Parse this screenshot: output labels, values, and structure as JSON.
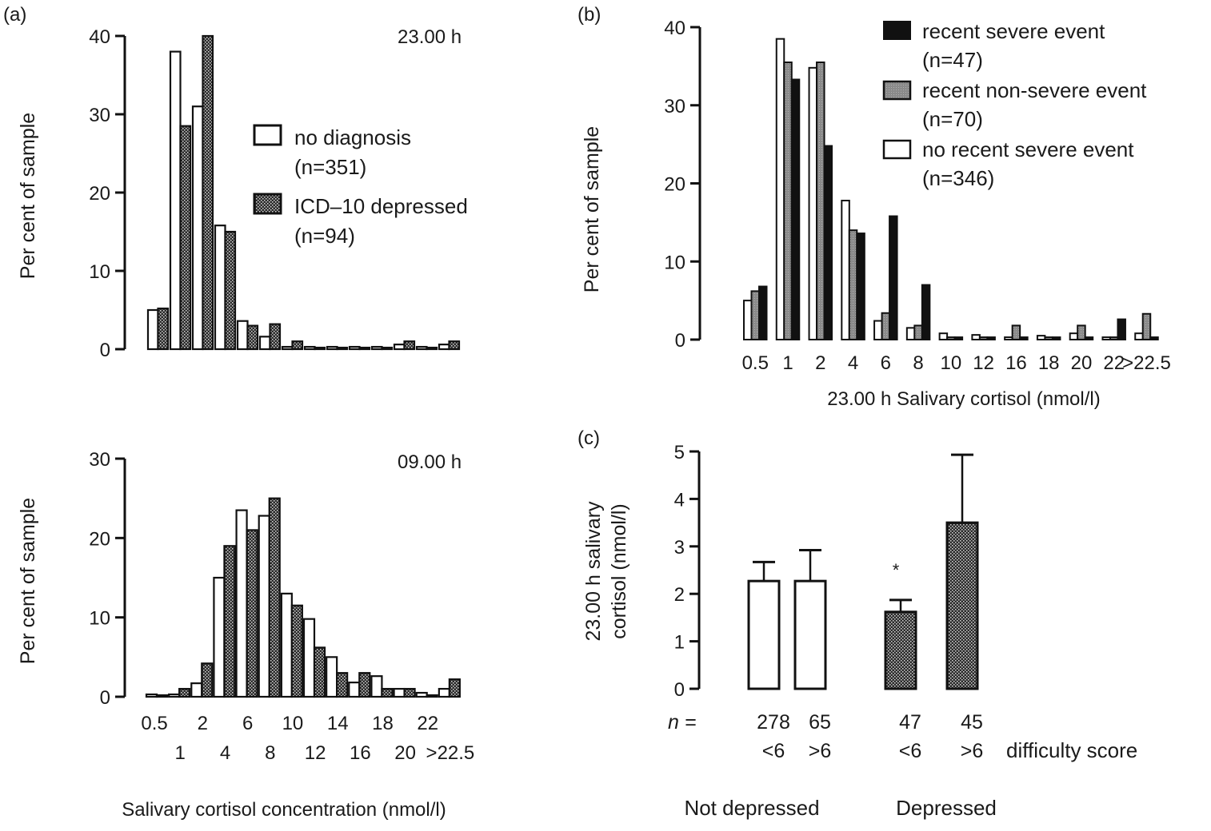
{
  "chart_data": [
    {
      "id": "a_top",
      "panel_label": "(a)",
      "type": "bar",
      "title": "23.00 h",
      "xlabel": "",
      "ylabel": "Per cent of sample",
      "ylim": [
        0,
        40
      ],
      "yticks": [
        0,
        10,
        20,
        30,
        40
      ],
      "categories": [
        "0.5",
        "1",
        "2",
        "4",
        "6",
        "8",
        "10",
        "12",
        "14",
        "16",
        "18",
        "20",
        "22",
        ">22.5"
      ],
      "series": [
        {
          "name": "no diagnosis",
          "n_label": "(n=351)",
          "fill": "white",
          "values": [
            5.0,
            38.0,
            31.0,
            15.8,
            3.6,
            1.6,
            0.3,
            0.3,
            0.3,
            0.3,
            0.3,
            0.6,
            0.3,
            0.6
          ]
        },
        {
          "name": "ICD–10 depressed",
          "n_label": "(n=94)",
          "fill": "stipple",
          "values": [
            5.2,
            28.5,
            40.0,
            15.0,
            3.0,
            3.2,
            1.0,
            0.2,
            0.2,
            0.2,
            0.2,
            1.0,
            0.2,
            1.0
          ]
        }
      ],
      "legend": "right"
    },
    {
      "id": "a_bottom",
      "type": "bar",
      "title": "09.00 h",
      "xlabel": "Salivary cortisol concentration (nmol/l)",
      "ylabel": "Per cent of sample",
      "ylim": [
        0,
        30
      ],
      "yticks": [
        0,
        10,
        20,
        30
      ],
      "categories": [
        "0.5",
        "1",
        "2",
        "4",
        "6",
        "8",
        "10",
        "12",
        "14",
        "16",
        "18",
        "20",
        "22",
        ">22.5"
      ],
      "series": [
        {
          "name": "no diagnosis",
          "fill": "white",
          "values": [
            0.3,
            0.3,
            1.7,
            15.0,
            23.5,
            22.8,
            13.0,
            9.8,
            5.0,
            1.8,
            2.6,
            1.0,
            0.5,
            1.0
          ]
        },
        {
          "name": "ICD–10 depressed",
          "fill": "stipple",
          "values": [
            0.2,
            1.0,
            4.2,
            19.0,
            21.0,
            25.0,
            11.5,
            6.2,
            3.0,
            3.0,
            1.0,
            1.0,
            0.2,
            2.2
          ]
        }
      ]
    },
    {
      "id": "b",
      "panel_label": "(b)",
      "type": "bar",
      "title": "",
      "xlabel": "23.00 h  Salivary cortisol (nmol/l)",
      "ylabel": "Per cent of sample",
      "ylim": [
        0,
        40
      ],
      "yticks": [
        0,
        10,
        20,
        30,
        40
      ],
      "categories": [
        "0.5",
        "1",
        "2",
        "4",
        "6",
        "8",
        "10",
        "12",
        "16",
        "18",
        "20",
        "22",
        ">22.5"
      ],
      "series": [
        {
          "name": "no recent severe event",
          "n_label": "(n=346)",
          "fill": "white",
          "values": [
            5.0,
            38.5,
            34.8,
            17.8,
            2.4,
            1.5,
            0.8,
            0.6,
            0.3,
            0.5,
            0.8,
            0.3,
            0.8
          ]
        },
        {
          "name": "recent non-severe event",
          "n_label": "(n=70)",
          "fill": "grey",
          "values": [
            6.2,
            35.5,
            35.5,
            14.0,
            3.4,
            1.8,
            0.3,
            0.3,
            1.8,
            0.3,
            1.8,
            0.3,
            3.3
          ]
        },
        {
          "name": "recent severe event",
          "n_label": "(n=47)",
          "fill": "black",
          "values": [
            6.8,
            33.3,
            24.8,
            13.6,
            15.8,
            7.0,
            0.3,
            0.3,
            0.3,
            0.3,
            0.3,
            2.6,
            0.3
          ]
        }
      ],
      "legend_order": [
        "recent severe event",
        "recent non-severe event",
        "no recent severe event"
      ],
      "legend": "top-right"
    },
    {
      "id": "c",
      "panel_label": "(c)",
      "type": "bar",
      "ylabel_line1": "23.00 h  salivary",
      "ylabel_line2": "cortisol (nmol/l)",
      "ylim": [
        0,
        5
      ],
      "yticks": [
        0,
        1,
        2,
        3,
        4,
        5
      ],
      "n_prefix": "n =",
      "difficulty_label": "difficulty score",
      "groups": [
        {
          "name": "Not depressed",
          "bars": [
            {
              "n": "278",
              "score": "<6",
              "value": 2.27,
              "error_top": 2.67,
              "fill": "white",
              "annotation": ""
            },
            {
              "n": "65",
              "score": ">6",
              "value": 2.27,
              "error_top": 2.92,
              "fill": "white",
              "annotation": ""
            }
          ]
        },
        {
          "name": "Depressed",
          "bars": [
            {
              "n": "47",
              "score": "<6",
              "value": 1.62,
              "error_top": 1.87,
              "fill": "stipple",
              "annotation": "*"
            },
            {
              "n": "45",
              "score": ">6",
              "value": 3.5,
              "error_top": 4.93,
              "fill": "stipple",
              "annotation": ""
            }
          ]
        }
      ]
    }
  ]
}
